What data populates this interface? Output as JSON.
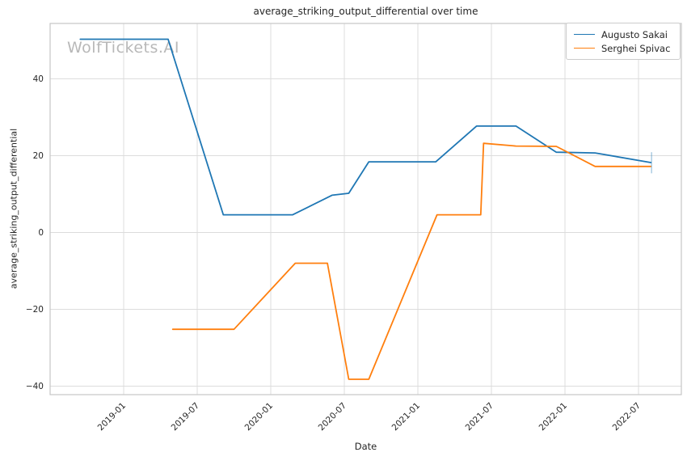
{
  "title": "average_striking_output_differential over time",
  "watermark": "WolfTickets.AI",
  "chart_data": {
    "type": "line",
    "title": "average_striking_output_differential over time",
    "xlabel": "Date",
    "ylabel": "average_striking_output_differential",
    "grid": true,
    "legend_position": "upper right",
    "background": "#ffffff",
    "grid_color": "#dcdcdc",
    "spine_color": "#c6c6c6",
    "x_axis": {
      "range": [
        "2018-07-01",
        "2022-10-16"
      ],
      "ticks": [
        {
          "value": "2019-01-01",
          "label": "2019-01"
        },
        {
          "value": "2019-07-01",
          "label": "2019-07"
        },
        {
          "value": "2020-01-01",
          "label": "2020-01"
        },
        {
          "value": "2020-07-01",
          "label": "2020-07"
        },
        {
          "value": "2021-01-01",
          "label": "2021-01"
        },
        {
          "value": "2021-07-01",
          "label": "2021-07"
        },
        {
          "value": "2022-01-01",
          "label": "2022-01"
        },
        {
          "value": "2022-07-01",
          "label": "2022-07"
        }
      ]
    },
    "y_axis": {
      "range": [
        -42.2,
        54.4
      ],
      "ticks": [
        {
          "value": -40,
          "label": "−40"
        },
        {
          "value": -20,
          "label": "−20"
        },
        {
          "value": 0,
          "label": "0"
        },
        {
          "value": 20,
          "label": "20"
        },
        {
          "value": 40,
          "label": "40"
        }
      ]
    },
    "series": [
      {
        "name": "Augusto Sakai",
        "color": "#1f77b4",
        "x": [
          "2018-09-15",
          "2019-04-20",
          "2019-09-05",
          "2020-02-25",
          "2020-06-01",
          "2020-07-12",
          "2020-09-01",
          "2021-02-15",
          "2021-05-25",
          "2021-09-01",
          "2021-12-10",
          "2022-03-15",
          "2022-08-01"
        ],
        "y": [
          50.3,
          50.3,
          4.6,
          4.6,
          9.7,
          10.2,
          18.4,
          18.4,
          27.7,
          27.7,
          20.9,
          20.7,
          18.2
        ]
      },
      {
        "name": "Serghei Spivac",
        "color": "#ff7f0e",
        "x": [
          "2019-05-01",
          "2019-10-01",
          "2020-03-01",
          "2020-05-20",
          "2020-07-12",
          "2020-09-01",
          "2021-02-18",
          "2021-06-05",
          "2021-06-12",
          "2021-09-01",
          "2021-12-10",
          "2022-03-15",
          "2022-08-01"
        ],
        "y": [
          -25.2,
          -25.2,
          -8.0,
          -8.0,
          -38.2,
          -38.2,
          4.6,
          4.6,
          23.2,
          22.5,
          22.4,
          17.2,
          17.2
        ]
      }
    ],
    "annotations": {
      "end_tick": {
        "date": "2022-08-01",
        "y_from": 15.4,
        "y_to": 20.9,
        "color": "#1f77b4",
        "opacity": 0.35
      }
    }
  }
}
